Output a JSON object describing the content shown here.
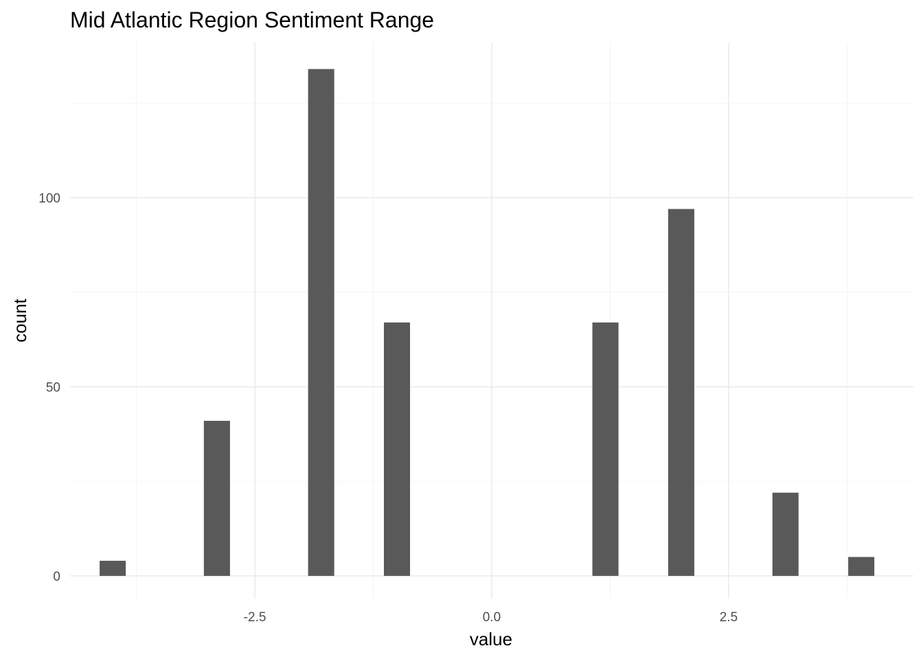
{
  "chart_data": {
    "type": "bar",
    "title": "Mid Atlantic Region Sentiment Range",
    "xlabel": "value",
    "ylabel": "count",
    "bar_color": "#595959",
    "grid_color": "#ebebeb",
    "grid": true,
    "legend": "none",
    "xlim": [
      -4.45,
      4.45
    ],
    "ylim": [
      -6,
      141
    ],
    "bin_width": 0.2758,
    "x_ticks": [
      -2.5,
      0,
      2.5
    ],
    "x_tick_labels": [
      "-2.5",
      "0.0",
      "2.5"
    ],
    "y_ticks": [
      0,
      50,
      100
    ],
    "y_tick_labels": [
      "0",
      "50",
      "100"
    ],
    "bars": [
      {
        "x": -4.0,
        "count": 4
      },
      {
        "x": -2.9,
        "count": 41
      },
      {
        "x": -1.8,
        "count": 134
      },
      {
        "x": -1.0,
        "count": 67
      },
      {
        "x": 1.2,
        "count": 67
      },
      {
        "x": 2.0,
        "count": 97
      },
      {
        "x": 3.1,
        "count": 22
      },
      {
        "x": 3.9,
        "count": 5
      }
    ]
  }
}
